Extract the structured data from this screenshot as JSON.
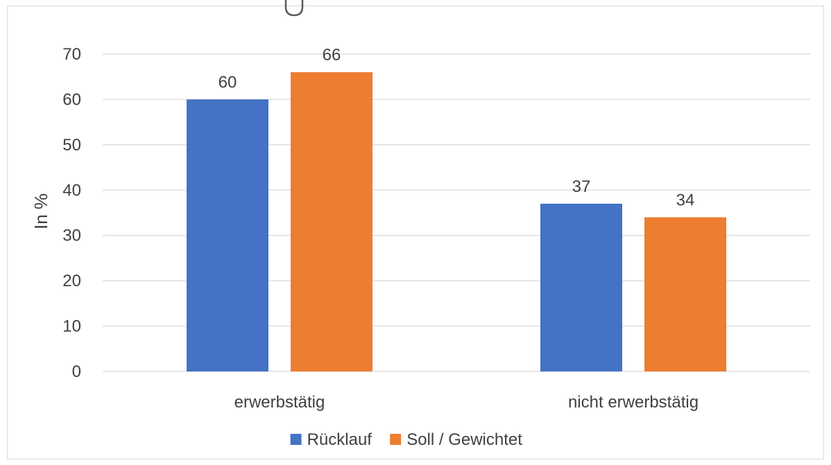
{
  "chart_data": {
    "type": "bar",
    "title": "",
    "xlabel": "",
    "ylabel": "In %",
    "ylim": [
      0,
      70
    ],
    "yticks": [
      0,
      10,
      20,
      30,
      40,
      50,
      60,
      70
    ],
    "grid": true,
    "legend_position": "bottom",
    "categories": [
      "erwerbstätig",
      "nicht erwerbstätig"
    ],
    "series": [
      {
        "name": "Rücklauf",
        "values": [
          60,
          37
        ],
        "color": "#4472C4"
      },
      {
        "name": "Soll / Gewichtet",
        "values": [
          66,
          34
        ],
        "color": "#ED7D31"
      }
    ]
  }
}
